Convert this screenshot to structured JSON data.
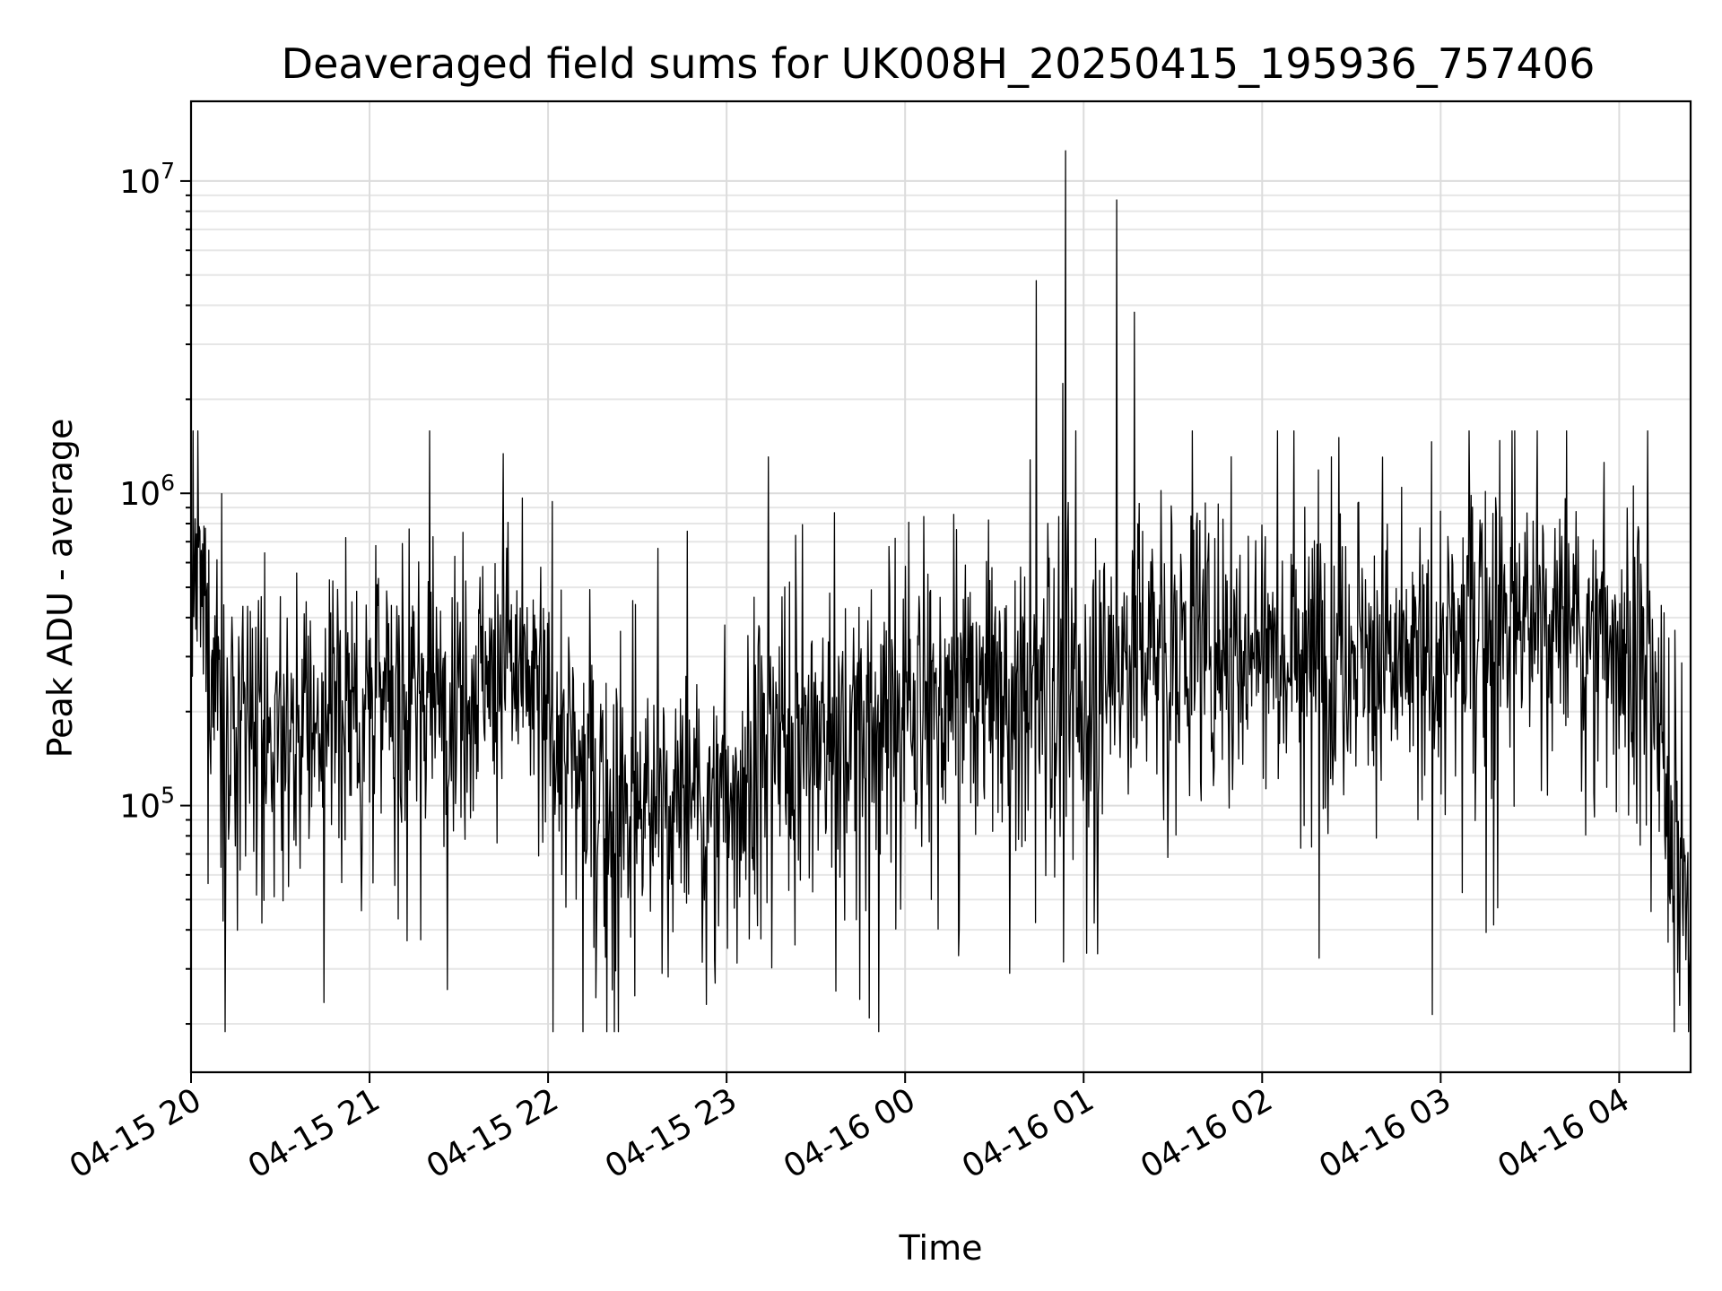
{
  "chart_data": {
    "type": "line",
    "title": "Deaveraged field sums for UK008H_20250415_195936_757406",
    "xlabel": "Time",
    "ylabel": "Peak ADU - average",
    "yscale": "log",
    "ylim": [
      14000,
      18000000
    ],
    "xlim": [
      "2025-04-15 20:00",
      "2025-04-16 04:24"
    ],
    "x_ticks": [
      "04-15 20",
      "04-15 21",
      "04-15 22",
      "04-15 23",
      "04-16 00",
      "04-16 01",
      "04-16 02",
      "04-16 03",
      "04-16 04"
    ],
    "y_ticks": [
      {
        "value": 100000,
        "base": "10",
        "exp": "5"
      },
      {
        "value": 1000000,
        "base": "10",
        "exp": "6"
      },
      {
        "value": 10000000,
        "base": "10",
        "exp": "7"
      }
    ],
    "grid": "major and minor",
    "line_color": "#000000",
    "series": [
      {
        "x": [
          "2025-04-15 20:00",
          "2025-04-15 20:15",
          "2025-04-15 20:30",
          "2025-04-15 20:45",
          "2025-04-15 21:00",
          "2025-04-15 21:15",
          "2025-04-15 21:30",
          "2025-04-15 21:45",
          "2025-04-15 22:00",
          "2025-04-15 22:15",
          "2025-04-15 22:30",
          "2025-04-15 22:45",
          "2025-04-15 23:00",
          "2025-04-15 23:15",
          "2025-04-15 23:30",
          "2025-04-15 23:45",
          "2025-04-16 00:00",
          "2025-04-16 00:15",
          "2025-04-16 00:30",
          "2025-04-16 00:45",
          "2025-04-16 01:00",
          "2025-04-16 01:15",
          "2025-04-16 01:30",
          "2025-04-16 01:45",
          "2025-04-16 02:00",
          "2025-04-16 02:15",
          "2025-04-16 02:30",
          "2025-04-16 02:45",
          "2025-04-16 03:00",
          "2025-04-16 03:15",
          "2025-04-16 03:30",
          "2025-04-16 03:45",
          "2025-04-16 04:00",
          "2025-04-16 04:10",
          "2025-04-16 04:24"
        ],
        "y": [
          600000,
          150000,
          180000,
          200000,
          220000,
          230000,
          250000,
          300000,
          200000,
          110000,
          100000,
          100000,
          110000,
          150000,
          170000,
          190000,
          210000,
          230000,
          240000,
          230000,
          250000,
          300000,
          370000,
          330000,
          330000,
          340000,
          350000,
          270000,
          300000,
          440000,
          390000,
          370000,
          360000,
          250000,
          40000
        ]
      }
    ],
    "spikes": [
      {
        "x": "2025-04-16 00:44",
        "y": 4800000
      },
      {
        "x": "2025-04-16 00:54",
        "y": 12500000
      },
      {
        "x": "2025-04-16 00:53",
        "y": 2250000
      },
      {
        "x": "2025-04-16 01:11",
        "y": 8700000
      },
      {
        "x": "2025-04-16 01:17",
        "y": 3800000
      }
    ]
  }
}
